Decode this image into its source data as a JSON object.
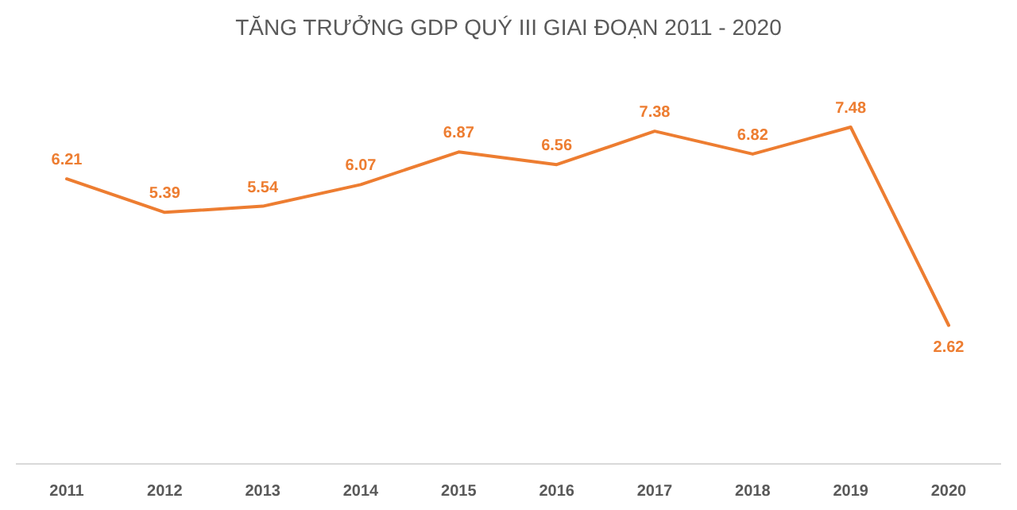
{
  "chart_data": {
    "type": "line",
    "title": "TĂNG TRƯỞNG GDP QUÝ III GIAI ĐOẠN 2011 - 2020",
    "categories": [
      "2011",
      "2012",
      "2013",
      "2014",
      "2015",
      "2016",
      "2017",
      "2018",
      "2019",
      "2020"
    ],
    "series": [
      {
        "color": "#ed7d31",
        "values": [
          6.21,
          5.39,
          5.54,
          6.07,
          6.87,
          6.56,
          7.38,
          6.82,
          7.48,
          2.62
        ]
      }
    ],
    "data_labels": true,
    "marker": "none",
    "line_style": "solid",
    "grid": false,
    "tick_labels": "x"
  }
}
